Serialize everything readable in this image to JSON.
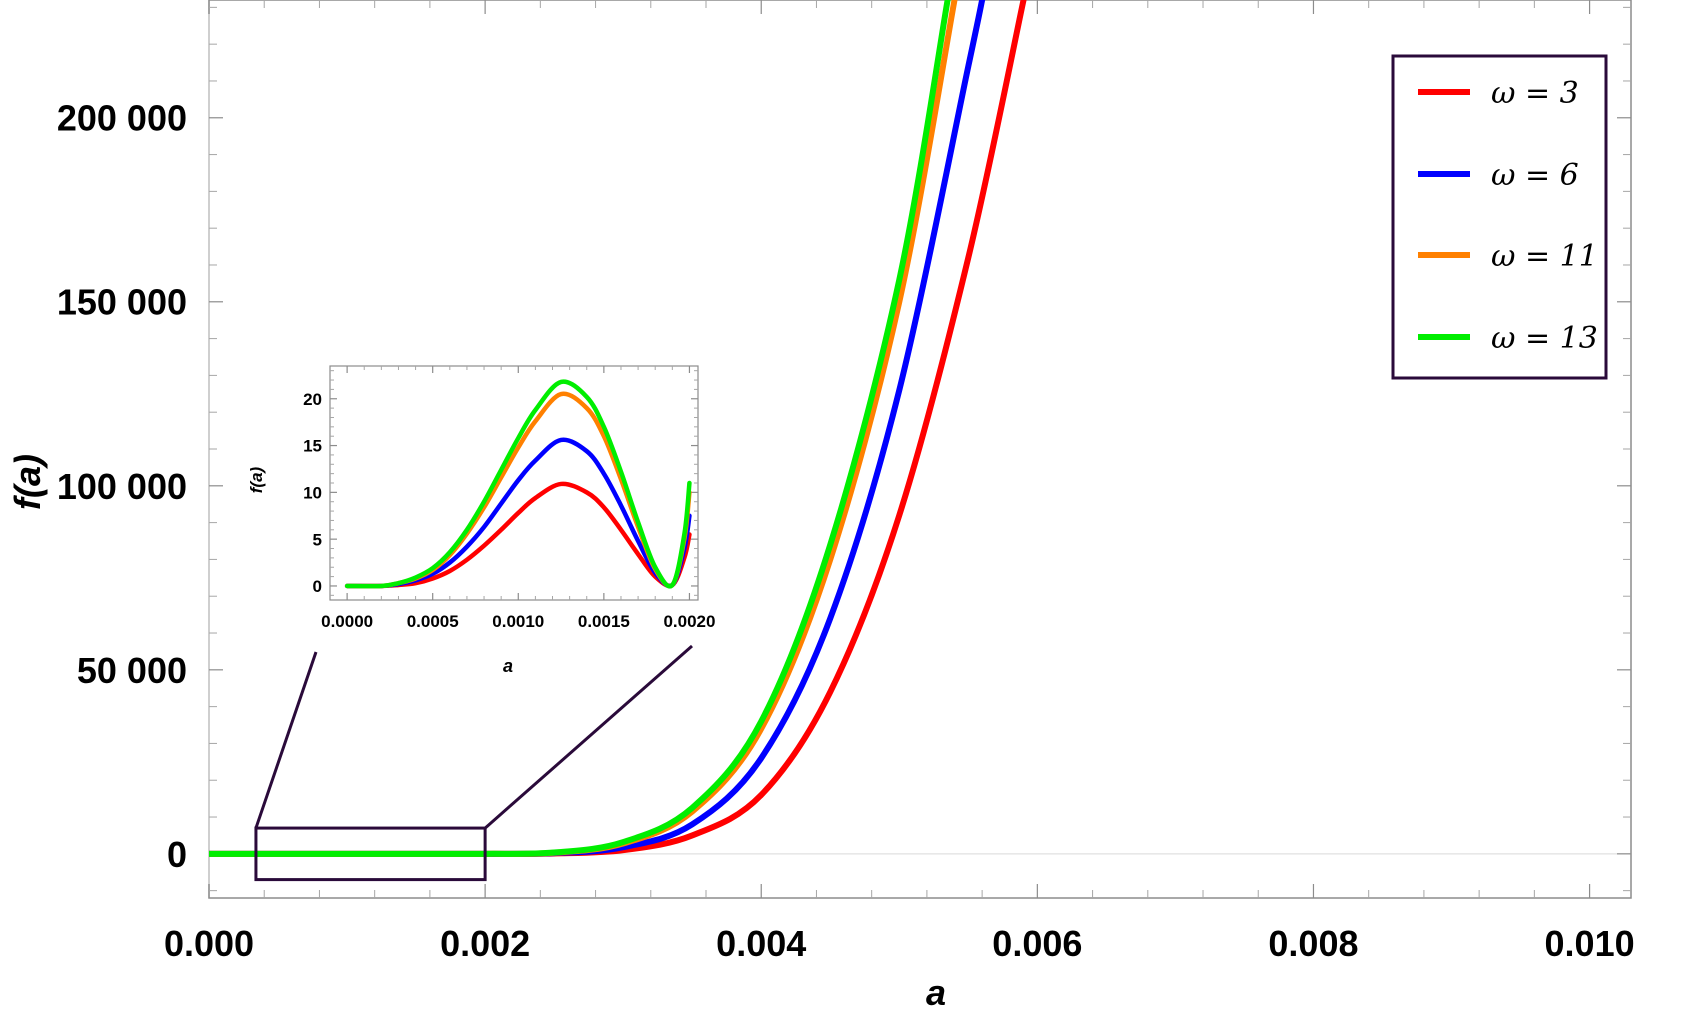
{
  "chart_data": [
    {
      "type": "line",
      "role": "main",
      "xlabel": "a",
      "ylabel": "f(a)",
      "xlim": [
        0,
        0.0103
      ],
      "ylim": [
        -12000,
        232000
      ],
      "x_ticks": [
        0,
        0.002,
        0.004,
        0.006,
        0.008,
        0.01
      ],
      "x_tick_labels": [
        "0.000",
        "0.002",
        "0.004",
        "0.006",
        "0.008",
        "0.010"
      ],
      "y_ticks": [
        0,
        50000,
        100000,
        150000,
        200000
      ],
      "y_tick_labels": [
        "0",
        "50 000",
        "100 000",
        "150 000",
        "200 000"
      ],
      "legend_position": "top-right",
      "grid": false,
      "series": [
        {
          "name": "ω = 3",
          "color": "#ff0000",
          "x": [
            0,
            0.0005,
            0.001,
            0.0015,
            0.002,
            0.0025,
            0.003,
            0.0035,
            0.004,
            0.0045,
            0.005,
            0.0055,
            0.0059
          ],
          "y": [
            0,
            0,
            0,
            0,
            0,
            100,
            1000,
            5000,
            16000,
            44000,
            92000,
            162000,
            232000
          ]
        },
        {
          "name": "ω = 6",
          "color": "#0000ff",
          "x": [
            0,
            0.0005,
            0.001,
            0.0015,
            0.002,
            0.0025,
            0.003,
            0.0035,
            0.004,
            0.0045,
            0.005,
            0.0055,
            0.0056
          ],
          "y": [
            0,
            0,
            0,
            0,
            0,
            200,
            1800,
            8000,
            26000,
            64000,
            126000,
            214000,
            232000
          ]
        },
        {
          "name": "ω = 11",
          "color": "#ff8000",
          "x": [
            0,
            0.0005,
            0.001,
            0.0015,
            0.002,
            0.0025,
            0.003,
            0.0035,
            0.004,
            0.0045,
            0.005,
            0.0054
          ],
          "y": [
            0,
            0,
            0,
            0,
            0,
            300,
            2800,
            11500,
            34000,
            80000,
            150000,
            232000
          ]
        },
        {
          "name": "ω = 13",
          "color": "#00ee00",
          "x": [
            0,
            0.0005,
            0.001,
            0.0015,
            0.002,
            0.0025,
            0.003,
            0.0035,
            0.004,
            0.0045,
            0.005,
            0.00535
          ],
          "y": [
            0,
            0,
            0,
            0,
            0,
            350,
            3200,
            12500,
            36000,
            84000,
            156000,
            232000
          ]
        }
      ],
      "zoom_box": {
        "x": [
          0.00034,
          0.002
        ],
        "y": [
          -7000,
          7000
        ]
      }
    },
    {
      "type": "line",
      "role": "inset",
      "xlabel": "a",
      "ylabel": "f(a)",
      "xlim": [
        -0.0001,
        0.00205
      ],
      "ylim": [
        -1.5,
        23.5
      ],
      "x_ticks": [
        0,
        0.0005,
        0.001,
        0.0015,
        0.002
      ],
      "x_tick_labels": [
        "0.0000",
        "0.0005",
        "0.0010",
        "0.0015",
        "0.0020"
      ],
      "y_ticks": [
        0,
        5,
        10,
        15,
        20
      ],
      "y_tick_labels": [
        "0",
        "5",
        "10",
        "15",
        "20"
      ],
      "series": [
        {
          "name": "ω = 3",
          "color": "#ff0000",
          "x": [
            0,
            0.0002,
            0.0003,
            0.0004,
            0.0005,
            0.0006,
            0.0007,
            0.0008,
            0.0009,
            0.001,
            0.0011,
            0.00125,
            0.0014,
            0.0015,
            0.0016,
            0.0017,
            0.0018,
            0.0019,
            0.00197,
            0.002
          ],
          "y": [
            0,
            0,
            0.1,
            0.3,
            0.8,
            1.6,
            2.8,
            4.3,
            6.0,
            7.8,
            9.4,
            10.9,
            10.0,
            8.4,
            6.0,
            3.4,
            1.0,
            0.1,
            3.0,
            5.5
          ]
        },
        {
          "name": "ω = 6",
          "color": "#0000ff",
          "x": [
            0,
            0.0002,
            0.0003,
            0.0004,
            0.0005,
            0.0006,
            0.0007,
            0.0008,
            0.0009,
            0.001,
            0.0011,
            0.00125,
            0.0014,
            0.0015,
            0.0016,
            0.0017,
            0.0018,
            0.0019,
            0.00197,
            0.002
          ],
          "y": [
            0,
            0,
            0.2,
            0.6,
            1.3,
            2.5,
            4.2,
            6.3,
            8.8,
            11.3,
            13.4,
            15.6,
            14.4,
            12.0,
            8.6,
            4.8,
            1.4,
            0.1,
            4.0,
            7.5
          ]
        },
        {
          "name": "ω = 11",
          "color": "#ff8000",
          "x": [
            0,
            0.0002,
            0.0003,
            0.0004,
            0.0005,
            0.0006,
            0.0007,
            0.0008,
            0.0009,
            0.001,
            0.0011,
            0.00125,
            0.0014,
            0.0015,
            0.0016,
            0.0017,
            0.0018,
            0.0019,
            0.00197,
            0.002
          ],
          "y": [
            0,
            0,
            0.3,
            0.8,
            1.7,
            3.3,
            5.6,
            8.4,
            11.6,
            14.8,
            17.6,
            20.5,
            19.0,
            16.0,
            11.4,
            6.3,
            1.8,
            0.1,
            5.0,
            10.0
          ]
        },
        {
          "name": "ω = 13",
          "color": "#00ee00",
          "x": [
            0,
            0.0002,
            0.0003,
            0.0004,
            0.0005,
            0.0006,
            0.0007,
            0.0008,
            0.0009,
            0.001,
            0.0011,
            0.00125,
            0.0014,
            0.0015,
            0.0016,
            0.0017,
            0.0018,
            0.0019,
            0.00197,
            0.002
          ],
          "y": [
            0,
            0,
            0.3,
            0.9,
            1.9,
            3.6,
            6.0,
            9.0,
            12.4,
            15.8,
            18.8,
            21.8,
            20.2,
            17.0,
            12.2,
            6.8,
            2.0,
            0.1,
            5.5,
            11.0
          ]
        }
      ]
    }
  ]
}
